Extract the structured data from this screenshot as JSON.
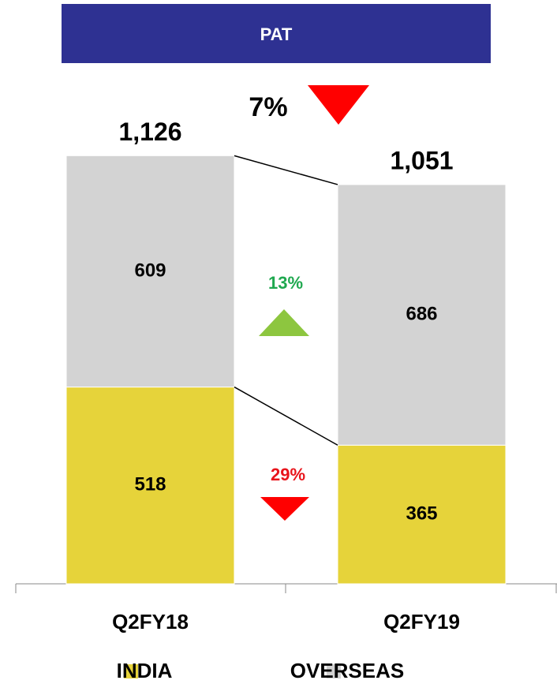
{
  "chart_data": {
    "type": "stacked_bar",
    "title": "PAT",
    "categories": [
      "Q2FY18",
      "Q2FY19"
    ],
    "series": [
      {
        "name": "INDIA",
        "color": "#e6d33a",
        "values": [
          518,
          365
        ]
      },
      {
        "name": "OVERSEAS",
        "color": "#d3d3d3",
        "values": [
          609,
          686
        ]
      }
    ],
    "totals": [
      1126,
      1051
    ],
    "total_labels": [
      "1,126",
      "1,051"
    ],
    "annotations": [
      {
        "text": "7%"
      },
      {
        "text": "13%"
      },
      {
        "text": "29%"
      }
    ]
  }
}
